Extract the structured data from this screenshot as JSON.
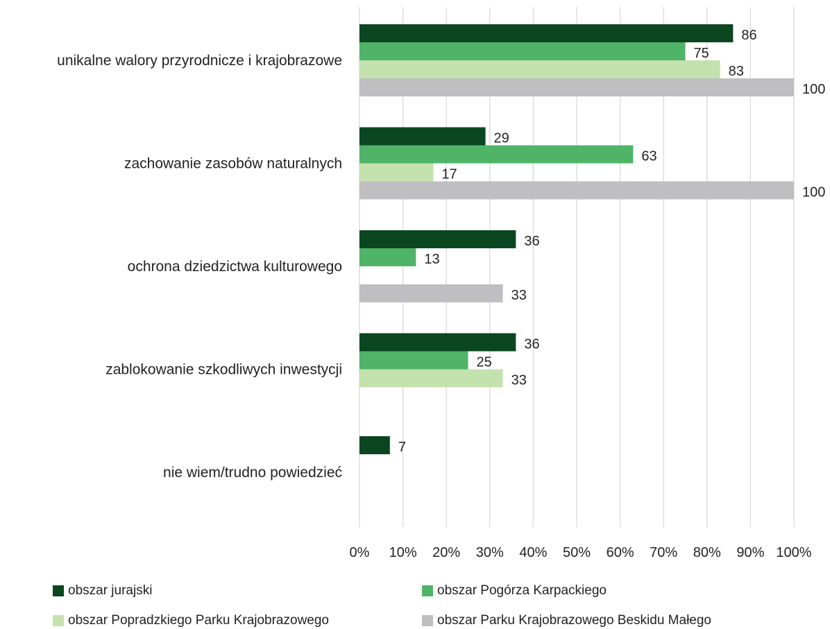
{
  "chart_data": {
    "type": "bar",
    "orientation": "horizontal",
    "categories": [
      "unikalne walory przyrodnicze i krajobrazowe",
      "zachowanie zasobów naturalnych",
      "ochrona dziedzictwa kulturowego",
      "zablokowanie szkodliwych inwestycji",
      "nie wiem/trudno powiedzieć"
    ],
    "series": [
      {
        "name": "obszar jurajski",
        "color": "#0a4620",
        "values": [
          86,
          29,
          36,
          36,
          7
        ]
      },
      {
        "name": "obszar Pogórza Karpackiego",
        "color": "#4fb467",
        "values": [
          75,
          63,
          13,
          25,
          null
        ]
      },
      {
        "name": "obszar Popradzkiego Parku Krajobrazowego",
        "color": "#c4e2ad",
        "values": [
          83,
          17,
          null,
          33,
          null
        ]
      },
      {
        "name": "obszar Parku Krajobrazowego Beskidu Małego",
        "color": "#bfbfc1",
        "values": [
          100,
          100,
          33,
          null,
          null
        ]
      }
    ],
    "xticks": [
      "0%",
      "10%",
      "20%",
      "30%",
      "40%",
      "50%",
      "60%",
      "70%",
      "80%",
      "90%",
      "100%"
    ],
    "xlim": [
      0,
      100
    ],
    "grid": "vertical",
    "legend_position": "bottom",
    "title": "",
    "xlabel": "",
    "ylabel": ""
  }
}
